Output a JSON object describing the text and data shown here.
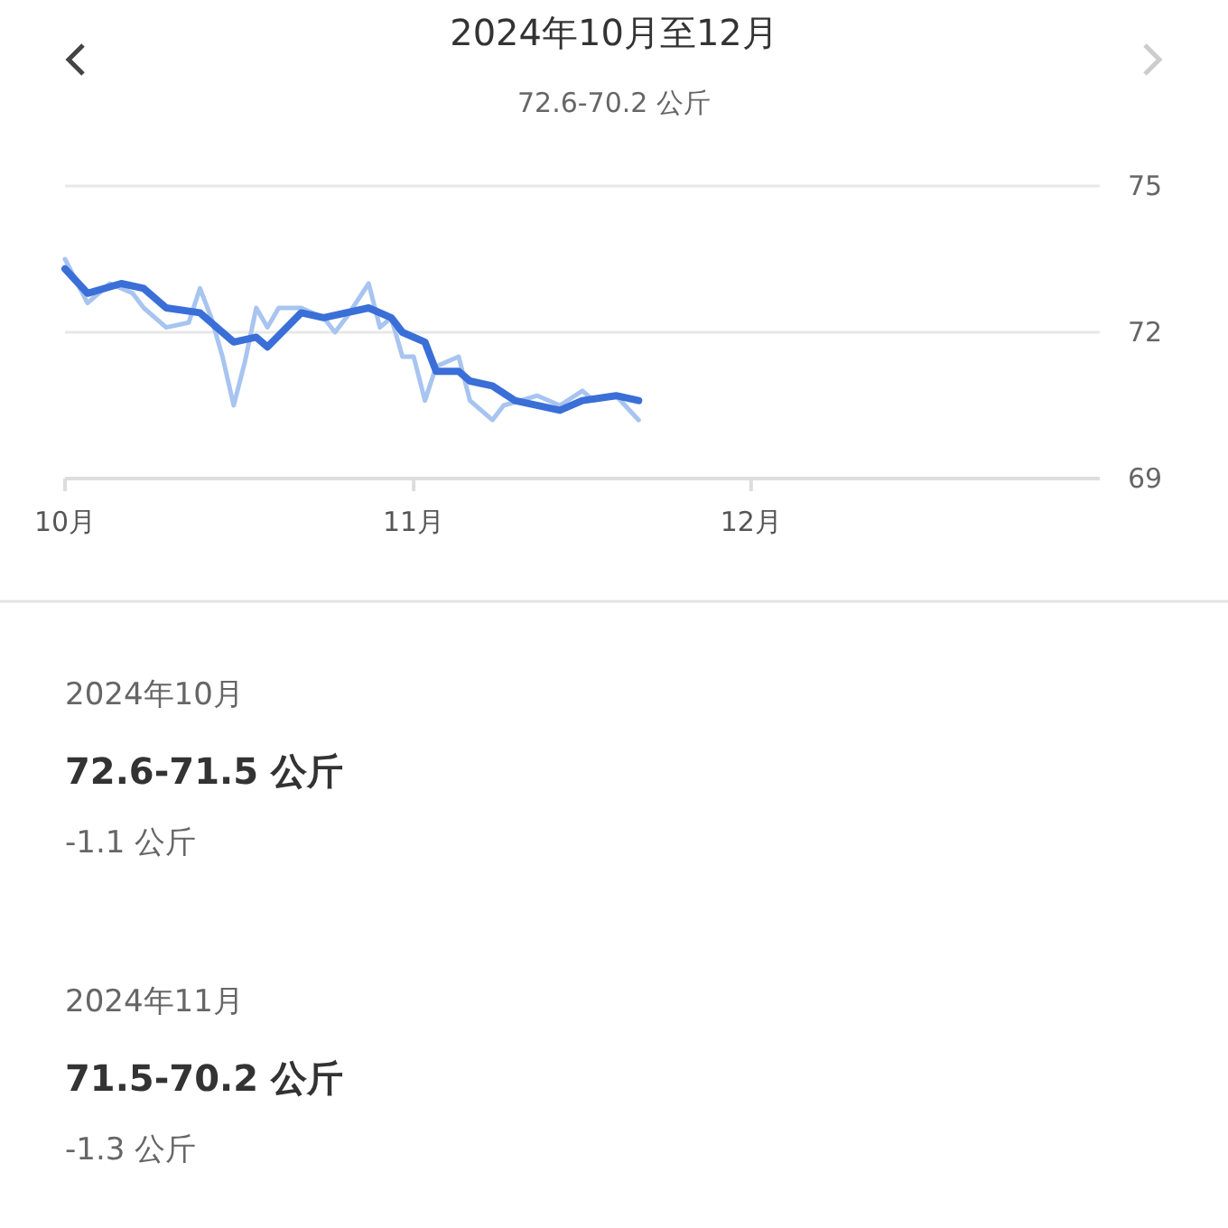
{
  "chart_data": {
    "type": "line",
    "title": "2024年10月至12月",
    "subtitle": "72.6-70.2 公斤",
    "xlim": [
      "2024-10-01",
      "2025-01-01"
    ],
    "xticks": [
      {
        "value": "2024-10-01",
        "label": "10月"
      },
      {
        "value": "2024-11-01",
        "label": "11月"
      },
      {
        "value": "2024-12-01",
        "label": "12月"
      }
    ],
    "ylim": [
      69,
      75
    ],
    "yticks": [
      69,
      72,
      75
    ],
    "grid": "y",
    "series": [
      {
        "color": "#a8c4f0",
        "x": [
          "2024-10-01",
          "2024-10-03",
          "2024-10-05",
          "2024-10-07",
          "2024-10-08",
          "2024-10-10",
          "2024-10-12",
          "2024-10-13",
          "2024-10-14",
          "2024-10-15",
          "2024-10-16",
          "2024-10-17",
          "2024-10-18",
          "2024-10-19",
          "2024-10-20",
          "2024-10-22",
          "2024-10-24",
          "2024-10-25",
          "2024-10-26",
          "2024-10-28",
          "2024-10-29",
          "2024-10-30",
          "2024-10-31",
          "2024-11-01",
          "2024-11-02",
          "2024-11-03",
          "2024-11-05",
          "2024-11-06",
          "2024-11-08",
          "2024-11-09",
          "2024-11-12",
          "2024-11-14",
          "2024-11-16",
          "2024-11-17",
          "2024-11-19",
          "2024-11-21"
        ],
        "values": [
          73.5,
          72.6,
          73.0,
          72.8,
          72.5,
          72.1,
          72.2,
          72.9,
          72.3,
          71.5,
          70.5,
          71.4,
          72.5,
          72.1,
          72.5,
          72.5,
          72.3,
          72.0,
          72.3,
          73.0,
          72.1,
          72.3,
          71.5,
          71.5,
          70.6,
          71.3,
          71.5,
          70.6,
          70.2,
          70.5,
          70.7,
          70.5,
          70.8,
          70.6,
          70.7,
          70.2
        ]
      },
      {
        "color": "#3a6fd8",
        "x": [
          "2024-10-01",
          "2024-10-03",
          "2024-10-06",
          "2024-10-08",
          "2024-10-10",
          "2024-10-13",
          "2024-10-14",
          "2024-10-16",
          "2024-10-18",
          "2024-10-19",
          "2024-10-22",
          "2024-10-24",
          "2024-10-28",
          "2024-10-30",
          "2024-10-31",
          "2024-11-02",
          "2024-11-03",
          "2024-11-05",
          "2024-11-06",
          "2024-11-08",
          "2024-11-10",
          "2024-11-14",
          "2024-11-16",
          "2024-11-19",
          "2024-11-21"
        ],
        "values": [
          73.3,
          72.8,
          73.0,
          72.9,
          72.5,
          72.4,
          72.2,
          71.8,
          71.9,
          71.7,
          72.4,
          72.3,
          72.5,
          72.3,
          72.0,
          71.8,
          71.2,
          71.2,
          71.0,
          70.9,
          70.6,
          70.4,
          70.6,
          70.7,
          70.6
        ]
      }
    ],
    "annotations": [
      "2024年10月",
      "72.6-71.5 公斤",
      "-1.1 公斤",
      "2024年11月",
      "71.5-70.2 公斤",
      "-1.3 公斤"
    ]
  }
}
